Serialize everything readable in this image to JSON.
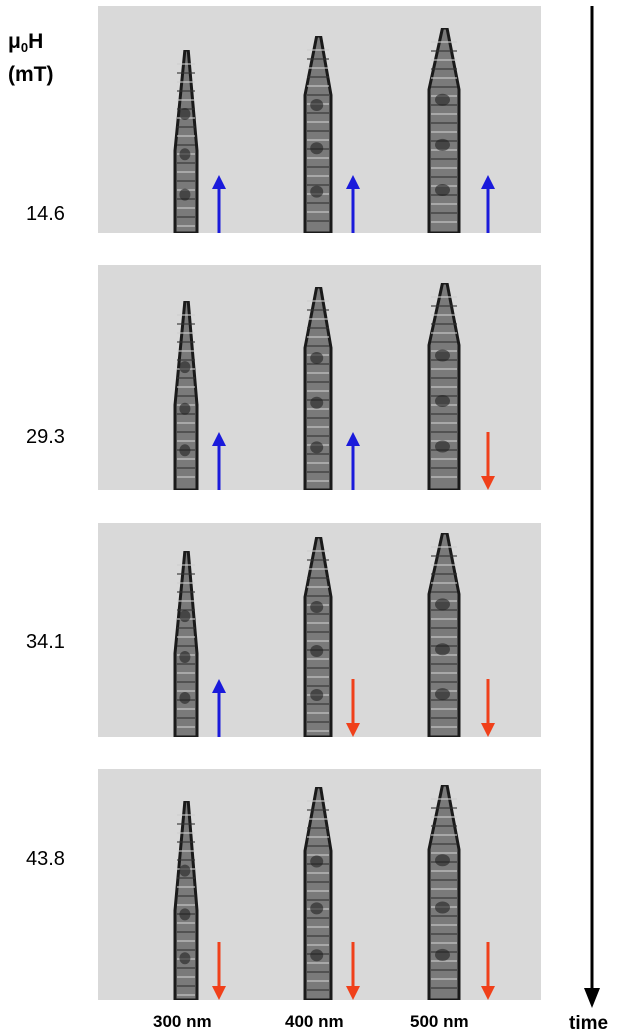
{
  "axis": {
    "symbol": "μ",
    "subscript": "0",
    "symbol_suffix": "H",
    "unit": "(mT)"
  },
  "fields": [
    "14.6",
    "29.3",
    "34.1",
    "43.8"
  ],
  "wire_widths": [
    "300 nm",
    "400 nm",
    "500 nm"
  ],
  "magnetization": [
    [
      "up",
      "up",
      "up"
    ],
    [
      "up",
      "up",
      "down"
    ],
    [
      "up",
      "down",
      "down"
    ],
    [
      "down",
      "down",
      "down"
    ]
  ],
  "time_label": "time",
  "colors": {
    "panel_bg": "#d9d9d9",
    "up_arrow": "#1a1adb",
    "down_arrow": "#f0401a",
    "axis": "#000000"
  }
}
